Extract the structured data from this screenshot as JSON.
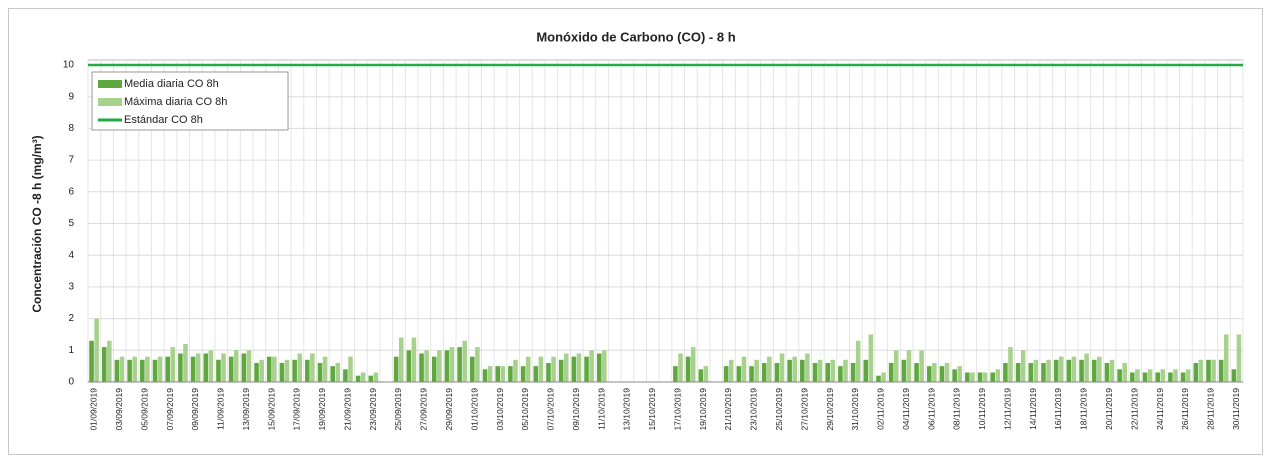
{
  "chart_data": {
    "type": "bar",
    "title": "Monóxido de Carbono (CO) - 8 h",
    "y_label": "Concentración CO -8 h (mg/m³)",
    "categories": [
      "01/09/2019",
      null,
      "03/09/2019",
      null,
      "05/09/2019",
      null,
      "07/09/2019",
      null,
      "09/09/2019",
      null,
      "11/09/2019",
      null,
      "13/09/2019",
      null,
      "15/09/2019",
      null,
      "17/09/2019",
      null,
      "19/09/2019",
      null,
      "21/09/2019",
      null,
      "23/09/2019",
      null,
      "25/09/2019",
      null,
      "27/09/2019",
      null,
      "29/09/2019",
      null,
      "01/10/2019",
      null,
      "03/10/2019",
      null,
      "05/10/2019",
      null,
      "07/10/2019",
      null,
      "09/10/2019",
      null,
      "11/10/2019",
      null,
      "13/10/2019",
      null,
      "15/10/2019",
      null,
      "17/10/2019",
      null,
      "19/10/2019",
      null,
      "21/10/2019",
      null,
      "23/10/2019",
      null,
      "25/10/2019",
      null,
      "27/10/2019",
      null,
      "29/10/2019",
      null,
      "31/10/2019",
      null,
      "02/11/2019",
      null,
      "04/11/2019",
      null,
      "06/11/2019",
      null,
      "08/11/2019",
      null,
      "10/11/2019",
      null,
      "12/11/2019",
      null,
      "14/11/2019",
      null,
      "16/11/2019",
      null,
      "18/11/2019",
      null,
      "20/11/2019",
      null,
      "22/11/2019",
      null,
      "24/11/2019",
      null,
      "26/11/2019",
      null,
      "28/11/2019",
      null,
      "30/11/2019"
    ],
    "series": [
      {
        "name": "Media diaria CO 8h",
        "color": "#5fa83f",
        "values": [
          1.3,
          1.1,
          0.7,
          0.7,
          0.7,
          0.7,
          0.8,
          0.9,
          0.8,
          0.9,
          0.7,
          0.8,
          0.9,
          0.6,
          0.8,
          0.6,
          0.7,
          0.7,
          0.6,
          0.5,
          0.4,
          0.2,
          0.2,
          null,
          0.8,
          1.0,
          0.9,
          0.8,
          1.0,
          1.1,
          0.8,
          0.4,
          0.5,
          0.5,
          0.5,
          0.5,
          0.6,
          0.7,
          0.8,
          0.8,
          0.9,
          null,
          null,
          null,
          null,
          null,
          0.5,
          0.8,
          0.4,
          null,
          0.5,
          0.5,
          0.5,
          0.6,
          0.6,
          0.7,
          0.7,
          0.6,
          0.6,
          0.5,
          0.6,
          0.7,
          0.2,
          0.6,
          0.7,
          0.6,
          0.5,
          0.5,
          0.4,
          0.3,
          0.3,
          0.3,
          0.6,
          0.6,
          0.6,
          0.6,
          0.7,
          0.7,
          0.7,
          0.7,
          0.6,
          0.4,
          0.3,
          0.3,
          0.3,
          0.3,
          0.3,
          0.6,
          0.7,
          0.7,
          0.4
        ]
      },
      {
        "name": "Máxima diaria CO 8h",
        "color": "#a9d18e",
        "values": [
          2.0,
          1.3,
          0.8,
          0.8,
          0.8,
          0.8,
          1.1,
          1.2,
          0.9,
          1.0,
          0.9,
          1.0,
          1.0,
          0.7,
          0.8,
          0.7,
          0.9,
          0.9,
          0.8,
          0.6,
          0.8,
          0.3,
          0.3,
          null,
          1.4,
          1.4,
          1.0,
          1.0,
          1.1,
          1.3,
          1.1,
          0.5,
          0.5,
          0.7,
          0.8,
          0.8,
          0.8,
          0.9,
          0.9,
          1.0,
          1.0,
          null,
          null,
          null,
          null,
          null,
          0.9,
          1.1,
          0.5,
          null,
          0.7,
          0.8,
          0.7,
          0.8,
          0.9,
          0.8,
          0.9,
          0.7,
          0.7,
          0.7,
          1.3,
          1.5,
          0.3,
          1.0,
          1.0,
          1.0,
          0.6,
          0.6,
          0.5,
          0.3,
          0.3,
          0.4,
          1.1,
          1.0,
          0.7,
          0.7,
          0.8,
          0.8,
          0.9,
          0.8,
          0.7,
          0.6,
          0.4,
          0.4,
          0.4,
          0.4,
          0.4,
          0.7,
          0.7,
          1.5,
          1.5
        ]
      }
    ],
    "reference_line": {
      "name": "Estándar CO 8h",
      "color": "#22aa44",
      "value": 10
    },
    "ylim": [
      0,
      10
    ],
    "yticks": [
      0,
      1,
      2,
      3,
      4,
      5,
      6,
      7,
      8,
      9,
      10
    ],
    "grid": true
  }
}
